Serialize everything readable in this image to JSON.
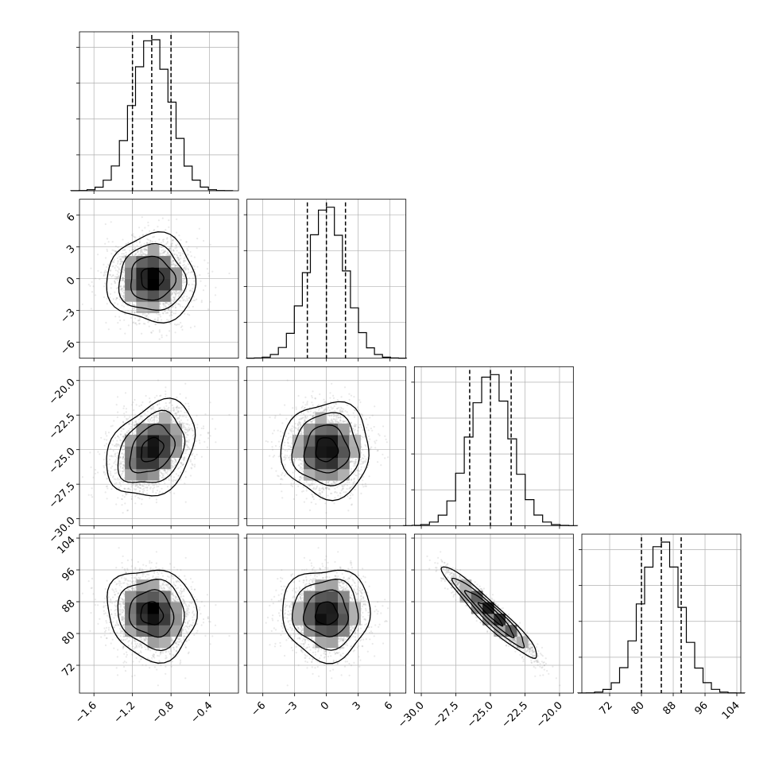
{
  "chart_data": {
    "type": "corner",
    "params": [
      {
        "mean": -1.0,
        "sd": 0.2,
        "range": [
          -1.75,
          -0.1
        ],
        "ticks": [
          -1.6,
          -1.2,
          -0.8,
          -0.4
        ],
        "tick_labels": [
          "−1.6",
          "−1.2",
          "−0.8",
          "−0.4"
        ],
        "quantiles": [
          -1.2,
          -1.0,
          -0.8
        ]
      },
      {
        "mean": 0.0,
        "sd": 1.8,
        "range": [
          -7.5,
          7.5
        ],
        "ticks": [
          -6,
          -3,
          0,
          3,
          6
        ],
        "tick_labels": [
          "−6",
          "−3",
          "0",
          "3",
          "6"
        ],
        "quantiles": [
          -1.8,
          0.0,
          1.8
        ]
      },
      {
        "mean": -25.0,
        "sd": 1.5,
        "range": [
          -30.5,
          -19.0
        ],
        "ticks": [
          -30.0,
          -27.5,
          -25.0,
          -22.5,
          -20.0
        ],
        "tick_labels": [
          "−30.0",
          "−27.5",
          "−25.0",
          "−22.5",
          "−20.0"
        ],
        "quantiles": [
          -26.5,
          -25.0,
          -23.5
        ]
      },
      {
        "mean": 85.0,
        "sd": 5.0,
        "range": [
          65.0,
          105.0
        ],
        "ticks": [
          72,
          80,
          88,
          96,
          104
        ],
        "tick_labels": [
          "72",
          "80",
          "88",
          "96",
          "104"
        ],
        "quantiles": [
          80.0,
          85.0,
          90.0
        ]
      }
    ],
    "correlations": [
      [
        1,
        0,
        0.3,
        -0.1
      ],
      [
        0,
        1,
        0,
        0
      ],
      [
        0.3,
        0,
        1,
        -0.95
      ],
      [
        -0.1,
        0,
        -0.95,
        1
      ]
    ],
    "histogram_bins": 20,
    "contour_levels_sigma": [
      0.5,
      1.0,
      1.5,
      2.0
    ],
    "grid": true,
    "title": "",
    "colors": {
      "hist": "#000000",
      "contour": "#000000",
      "points": "#9a9a9a",
      "density_max": "#000000",
      "grid": "#b0b0b0"
    }
  }
}
